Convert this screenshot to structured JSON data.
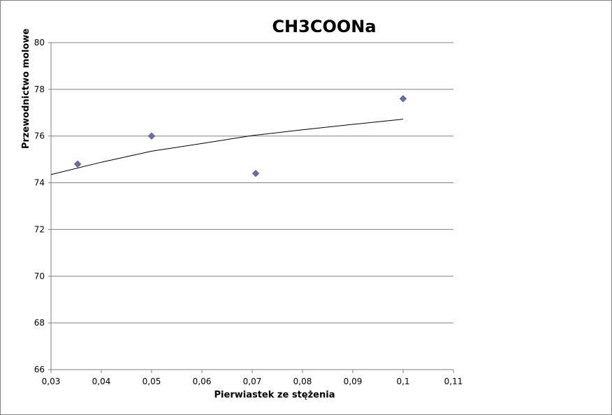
{
  "chart_data": {
    "type": "scatter",
    "title": "CH3COONa",
    "xlabel": "Pierwiastek ze stężenia",
    "ylabel": "Przewodnictwo molowe",
    "xlim": [
      0.03,
      0.11
    ],
    "ylim": [
      66,
      80
    ],
    "x_ticks": [
      0.03,
      0.04,
      0.05,
      0.06,
      0.07,
      0.08,
      0.09,
      0.1,
      0.11
    ],
    "x_tick_labels": [
      "0,03",
      "0,04",
      "0,05",
      "0,06",
      "0,07",
      "0,08",
      "0,09",
      "0,1",
      "0,11"
    ],
    "y_ticks": [
      66,
      68,
      70,
      72,
      74,
      76,
      78,
      80
    ],
    "y_tick_labels": [
      "66",
      "68",
      "70",
      "72",
      "74",
      "76",
      "78",
      "80"
    ],
    "grid": "horizontal",
    "legend": "none",
    "series": [
      {
        "marker": "diamond",
        "color": "#6b6fae",
        "points": [
          {
            "x": 0.0353,
            "y": 74.8
          },
          {
            "x": 0.05,
            "y": 76.0
          },
          {
            "x": 0.0707,
            "y": 74.4
          },
          {
            "x": 0.1,
            "y": 77.6
          }
        ]
      }
    ],
    "trendline": {
      "type": "logarithmic",
      "color": "#000000",
      "x_range": [
        0.03,
        0.1
      ],
      "points": [
        {
          "x": 0.03,
          "y": 74.35
        },
        {
          "x": 0.04,
          "y": 74.88
        },
        {
          "x": 0.05,
          "y": 75.35
        },
        {
          "x": 0.06,
          "y": 75.68
        },
        {
          "x": 0.07,
          "y": 76.02
        },
        {
          "x": 0.08,
          "y": 76.27
        },
        {
          "x": 0.09,
          "y": 76.5
        },
        {
          "x": 0.1,
          "y": 76.72
        }
      ]
    }
  }
}
